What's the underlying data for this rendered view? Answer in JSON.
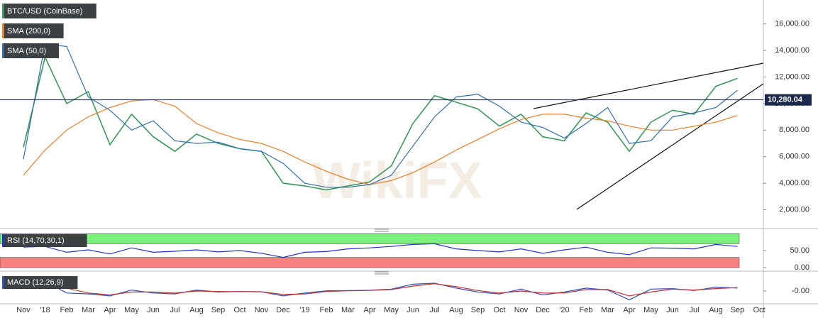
{
  "watermark": "WikiFX",
  "chart_data": [
    {
      "type": "line",
      "categories": [
        "Nov",
        "'18",
        "Feb",
        "Mar",
        "Apr",
        "May",
        "Jun",
        "Jul",
        "Aug",
        "Sep",
        "Oct",
        "Nov",
        "Dec",
        "'19",
        "Feb",
        "Mar",
        "Apr",
        "May",
        "Jun",
        "Jul",
        "Aug",
        "Sep",
        "Oct",
        "Nov",
        "Dec",
        "'20",
        "Feb",
        "Mar",
        "Apr",
        "May",
        "Jun",
        "Jul",
        "Aug",
        "Sep",
        "Oct"
      ],
      "series": [
        {
          "name": "BTC/USD (CoinBase)",
          "color": "#3a9a5c",
          "values": [
            6700,
            13500,
            10000,
            10900,
            6900,
            9200,
            7500,
            6400,
            7700,
            7000,
            6600,
            6400,
            4000,
            3800,
            3500,
            3800,
            4100,
            5300,
            8500,
            10600,
            10100,
            9600,
            8300,
            9200,
            7500,
            7200,
            9300,
            8600,
            6400,
            8600,
            9500,
            9200,
            11300,
            11900,
            null
          ]
        },
        {
          "name": "SMA (200,0)",
          "color": "#f07d28",
          "values": [
            4600,
            6500,
            8000,
            9000,
            9700,
            10200,
            10300,
            9800,
            8500,
            7800,
            7300,
            7000,
            6400,
            5600,
            4900,
            4300,
            3900,
            4200,
            4800,
            5600,
            6500,
            7300,
            8100,
            8800,
            9200,
            9200,
            8900,
            8700,
            8300,
            8000,
            8000,
            8300,
            8600,
            9100,
            null
          ]
        },
        {
          "name": "SMA (50,0)",
          "color": "#2f6fb5",
          "values": [
            5800,
            14500,
            14300,
            10500,
            9500,
            8000,
            8700,
            7200,
            7000,
            7100,
            6600,
            6400,
            5500,
            4000,
            3700,
            3700,
            3900,
            4600,
            6800,
            9000,
            10500,
            10700,
            9800,
            8600,
            8200,
            7400,
            8500,
            9700,
            7000,
            7200,
            9000,
            9300,
            9700,
            11000,
            null
          ]
        }
      ],
      "ylim": [
        800,
        17800
      ],
      "yticks": [
        {
          "value": 2000,
          "label": "2,000.00"
        },
        {
          "value": 4000,
          "label": "4,000.00"
        },
        {
          "value": 6000,
          "label": "6,000.00"
        },
        {
          "value": 8000,
          "label": "8,000.00"
        },
        {
          "value": 10000,
          "label": "10,000.00"
        },
        {
          "value": 12000,
          "label": "12,000.00"
        },
        {
          "value": 14000,
          "label": "14,000.00"
        },
        {
          "value": 16000,
          "label": "16,000.00"
        }
      ],
      "last_price": {
        "value": 10280.04,
        "label": "10,280.04"
      }
    },
    {
      "type": "line",
      "title": "RSI (14,70,30,1)",
      "series": [
        {
          "color": "#2233cc",
          "values": [
            60,
            62,
            45,
            52,
            40,
            58,
            45,
            48,
            52,
            46,
            50,
            42,
            30,
            45,
            47,
            55,
            58,
            62,
            68,
            70,
            55,
            50,
            46,
            55,
            42,
            52,
            60,
            45,
            38,
            58,
            57,
            55,
            68,
            62,
            null
          ]
        }
      ],
      "ylim": [
        0,
        100
      ],
      "yticks": [
        {
          "value": 50,
          "label": "50.00"
        },
        {
          "value": 0,
          "label": "0.00"
        }
      ],
      "bands": [
        {
          "from": 70,
          "to": 100,
          "color": "#7ef07e"
        },
        {
          "from": 0,
          "to": 30,
          "color": "#f88080"
        }
      ]
    },
    {
      "type": "line",
      "title": "MACD (12,26,9)",
      "series": [
        {
          "color": "#3050c0",
          "values": [
            400,
            1000,
            -200,
            -300,
            -500,
            100,
            -200,
            -300,
            100,
            -100,
            -50,
            -80,
            -500,
            -200,
            20,
            50,
            80,
            200,
            700,
            800,
            300,
            -100,
            -300,
            200,
            -400,
            -100,
            300,
            100,
            -900,
            200,
            250,
            50,
            400,
            300,
            null
          ]
        },
        {
          "color": "#c03030",
          "values": [
            300,
            800,
            300,
            -200,
            -400,
            -100,
            -100,
            -200,
            0,
            -50,
            -60,
            -70,
            -350,
            -300,
            -50,
            30,
            60,
            150,
            500,
            750,
            450,
            50,
            -200,
            0,
            -200,
            -200,
            150,
            150,
            -500,
            -100,
            200,
            100,
            250,
            350,
            null
          ]
        }
      ],
      "ylim": [
        -1600,
        1600
      ],
      "yticks": [
        {
          "value": 0,
          "label": "-0.00"
        }
      ]
    }
  ]
}
